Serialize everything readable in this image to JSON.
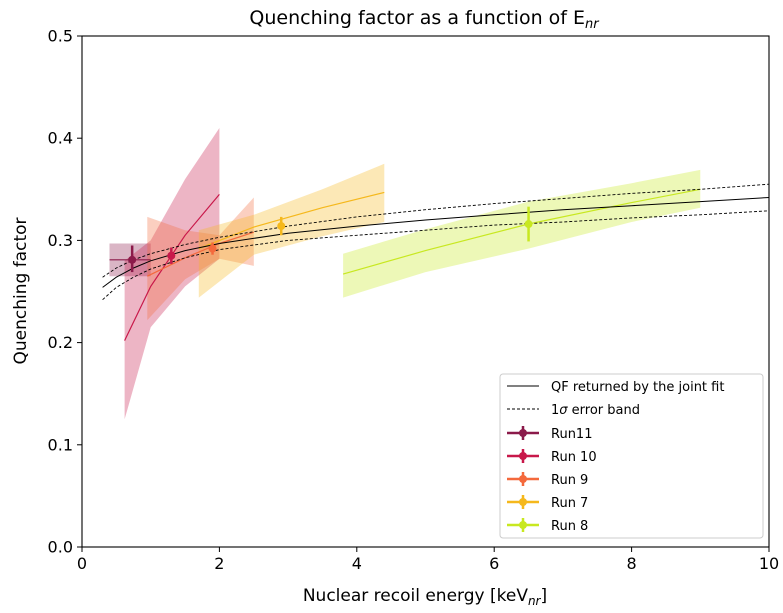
{
  "chart_data": {
    "type": "line",
    "title": "Quenching factor as a function of E",
    "title_subscript": "nr",
    "xlabel": "Nuclear recoil energy [keV",
    "xlabel_subscript": "nr",
    "xlabel_suffix": "]",
    "ylabel": "Quenching factor",
    "xlim": [
      0,
      10
    ],
    "ylim": [
      0.0,
      0.5
    ],
    "xticks": [
      0,
      2,
      4,
      6,
      8,
      10
    ],
    "xtick_labels": [
      "0",
      "2",
      "4",
      "6",
      "8",
      "10"
    ],
    "yticks": [
      0.0,
      0.1,
      0.2,
      0.3,
      0.4,
      0.5
    ],
    "ytick_labels": [
      "0.0",
      "0.1",
      "0.2",
      "0.3",
      "0.4",
      "0.5"
    ],
    "grid": false,
    "legend_position": "lower-right",
    "joint_fit": {
      "label": "QF returned by the joint fit",
      "x": [
        0.3,
        0.5,
        0.75,
        1.0,
        1.5,
        2.0,
        3.0,
        4.0,
        5.0,
        6.0,
        7.0,
        8.0,
        9.0,
        10.0
      ],
      "y": [
        0.254,
        0.264,
        0.273,
        0.28,
        0.29,
        0.297,
        0.307,
        0.314,
        0.32,
        0.325,
        0.33,
        0.334,
        0.338,
        0.342
      ]
    },
    "error_band": {
      "label": "1σ error band",
      "label_sigma": "σ",
      "label_prefix": "1",
      "label_suffix": " error band",
      "upper": [
        0.264,
        0.273,
        0.281,
        0.287,
        0.296,
        0.303,
        0.314,
        0.323,
        0.33,
        0.336,
        0.341,
        0.346,
        0.35,
        0.355
      ],
      "lower": [
        0.242,
        0.254,
        0.264,
        0.272,
        0.283,
        0.291,
        0.3,
        0.305,
        0.31,
        0.315,
        0.318,
        0.322,
        0.325,
        0.329
      ]
    },
    "series": [
      {
        "name": "Run11",
        "color": "#8b1a4a",
        "point": {
          "x": 0.73,
          "y": 0.281,
          "yerr": [
            0.012,
            0.014
          ]
        },
        "fit_x": [
          0.4,
          1.0
        ],
        "fit_y": [
          0.281,
          0.281
        ],
        "band_x": [
          0.4,
          1.0
        ],
        "band_upper": [
          0.297,
          0.297
        ],
        "band_lower": [
          0.265,
          0.265
        ]
      },
      {
        "name": "Run 10",
        "color": "#c8184a",
        "point": {
          "x": 1.3,
          "y": 0.285,
          "yerr": [
            0.008,
            0.008
          ]
        },
        "fit_x": [
          0.62,
          1.0,
          1.5,
          2.0
        ],
        "fit_y": [
          0.202,
          0.255,
          0.305,
          0.345
        ],
        "band_x": [
          0.62,
          1.0,
          1.5,
          2.0
        ],
        "band_upper": [
          0.28,
          0.3,
          0.36,
          0.41
        ],
        "band_lower": [
          0.125,
          0.215,
          0.255,
          0.282
        ]
      },
      {
        "name": "Run 9",
        "color": "#f4693c",
        "point": {
          "x": 1.9,
          "y": 0.292,
          "yerr": [
            0.006,
            0.006
          ]
        },
        "fit_x": [
          0.95,
          1.5,
          2.0,
          2.5
        ],
        "fit_y": [
          0.265,
          0.283,
          0.297,
          0.308
        ],
        "band_x": [
          0.95,
          1.5,
          2.0,
          2.5
        ],
        "band_upper": [
          0.323,
          0.31,
          0.305,
          0.342
        ],
        "band_lower": [
          0.222,
          0.262,
          0.282,
          0.275
        ]
      },
      {
        "name": "Run 7",
        "color": "#f5b81c",
        "point": {
          "x": 2.9,
          "y": 0.314,
          "yerr": [
            0.009,
            0.009
          ]
        },
        "fit_x": [
          1.7,
          2.5,
          3.5,
          4.4
        ],
        "fit_y": [
          0.292,
          0.313,
          0.332,
          0.347
        ],
        "band_x": [
          1.7,
          2.5,
          3.5,
          4.4
        ],
        "band_upper": [
          0.31,
          0.325,
          0.35,
          0.375
        ],
        "band_lower": [
          0.244,
          0.286,
          0.304,
          0.318
        ]
      },
      {
        "name": "Run 8",
        "color": "#c8e820",
        "point": {
          "x": 6.5,
          "y": 0.316,
          "yerr": [
            0.017,
            0.017
          ]
        },
        "fit_x": [
          3.8,
          5.0,
          6.5,
          8.0,
          9.0
        ],
        "fit_y": [
          0.267,
          0.29,
          0.316,
          0.337,
          0.35
        ],
        "band_x": [
          3.8,
          5.0,
          6.5,
          8.0,
          9.0
        ],
        "band_upper": [
          0.287,
          0.311,
          0.338,
          0.356,
          0.369
        ],
        "band_lower": [
          0.244,
          0.269,
          0.292,
          0.318,
          0.332
        ]
      }
    ]
  }
}
